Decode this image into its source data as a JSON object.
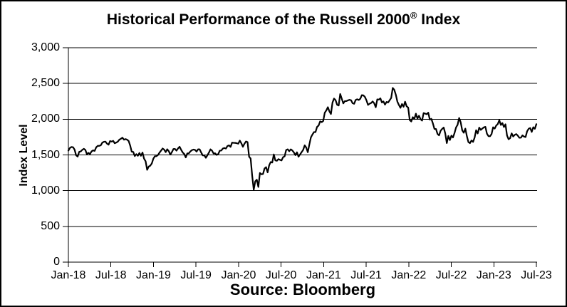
{
  "chart_data": {
    "type": "line",
    "title": "Historical Performance of the Russell 2000® Index",
    "title_parts": {
      "main": "Historical Performance of the Russell 2000",
      "registered": "®",
      "suffix": " Index"
    },
    "ylabel": "Index Level",
    "xlabel": "",
    "source_note": "Source: Bloomberg",
    "ylim": [
      0,
      3000
    ],
    "y_ticks": [
      0,
      500,
      1000,
      1500,
      2000,
      2500,
      3000
    ],
    "y_tick_labels": [
      "0",
      "500",
      "1,000",
      "1,500",
      "2,000",
      "2,500",
      "3,000"
    ],
    "x_tick_labels": [
      "Jan-18",
      "Jul-18",
      "Jan-19",
      "Jul-19",
      "Jan-20",
      "Jul-20",
      "Jan-21",
      "Jul-21",
      "Jan-22",
      "Jul-22",
      "Jan-23",
      "Jul-23"
    ],
    "grid": "horizontal",
    "legend": "none",
    "line_color": "#000000",
    "series": [
      {
        "name": "Russell 2000 Index",
        "frequency": "weekly",
        "start": "Jan-2018",
        "end": "Jul-2023",
        "values": [
          1560,
          1598,
          1611,
          1608,
          1575,
          1495,
          1477,
          1543,
          1549,
          1571,
          1586,
          1570,
          1510,
          1529,
          1513,
          1549,
          1564,
          1556,
          1607,
          1627,
          1627,
          1635,
          1672,
          1684,
          1686,
          1658,
          1643,
          1694,
          1687,
          1697,
          1663,
          1673,
          1686,
          1714,
          1726,
          1741,
          1713,
          1722,
          1713,
          1696,
          1632,
          1546,
          1542,
          1484,
          1511,
          1488,
          1527,
          1488,
          1533,
          1448,
          1411,
          1292,
          1337,
          1349,
          1380,
          1447,
          1482,
          1482,
          1499,
          1532,
          1560,
          1590,
          1575,
          1539,
          1579,
          1553,
          1505,
          1539,
          1582,
          1584,
          1560,
          1591,
          1614,
          1572,
          1535,
          1514,
          1465,
          1522,
          1523,
          1549,
          1567,
          1575,
          1570,
          1547,
          1579,
          1577,
          1533,
          1493,
          1495,
          1460,
          1495,
          1533,
          1578,
          1560,
          1520,
          1523,
          1500,
          1511,
          1559,
          1562,
          1589,
          1597,
          1589,
          1625,
          1634,
          1612,
          1672,
          1669,
          1668,
          1664,
          1657,
          1700,
          1662,
          1614,
          1657,
          1688,
          1679,
          1476,
          1449,
          1210,
          1014,
          1131,
          1153,
          1052,
          1247,
          1229,
          1233,
          1310,
          1329,
          1256,
          1355,
          1400,
          1394,
          1507,
          1423,
          1418,
          1441,
          1431,
          1423,
          1468,
          1480,
          1569,
          1579,
          1552,
          1578,
          1562,
          1535,
          1497,
          1537,
          1475,
          1508,
          1539,
          1570,
          1634,
          1603,
          1538,
          1644,
          1744,
          1785,
          1819,
          1820,
          1892,
          1911,
          1970,
          1959,
          1975,
          2091,
          2123,
          2168,
          2109,
          2073,
          2233,
          2289,
          2266,
          2201,
          2192,
          2353,
          2287,
          2221,
          2253,
          2254,
          2263,
          2271,
          2266,
          2224,
          2215,
          2269,
          2279,
          2268,
          2286,
          2336,
          2334,
          2311,
          2263,
          2200,
          2216,
          2226,
          2248,
          2223,
          2167,
          2277,
          2274,
          2292,
          2234,
          2248,
          2204,
          2241,
          2234,
          2265,
          2297,
          2437,
          2411,
          2343,
          2246,
          2199,
          2159,
          2212,
          2174,
          2245,
          2180,
          2163,
          1988,
          1968,
          2028,
          2003,
          2077,
          2009,
          2048,
          2001,
          1980,
          2086,
          2078,
          2070,
          2091,
          1995,
          2005,
          1941,
          1864,
          1863,
          1793,
          1774,
          1838,
          1864,
          1883,
          1801,
          1666,
          1766,
          1708,
          1770,
          1744,
          1806,
          1885,
          1922,
          2017,
          1957,
          1844,
          1810,
          1868,
          1762,
          1680,
          1665,
          1702,
          1682,
          1742,
          1846,
          1800,
          1882,
          1850,
          1869,
          1886,
          1893,
          1797,
          1763,
          1761,
          1793,
          1887,
          1868,
          1911,
          1932,
          1986,
          1919,
          1946,
          1890,
          1928,
          1772,
          1720,
          1735,
          1802,
          1758,
          1781,
          1792,
          1769,
          1740,
          1741,
          1774,
          1757,
          1750,
          1831,
          1866,
          1876,
          1822,
          1888,
          1865,
          1931
        ]
      }
    ]
  }
}
